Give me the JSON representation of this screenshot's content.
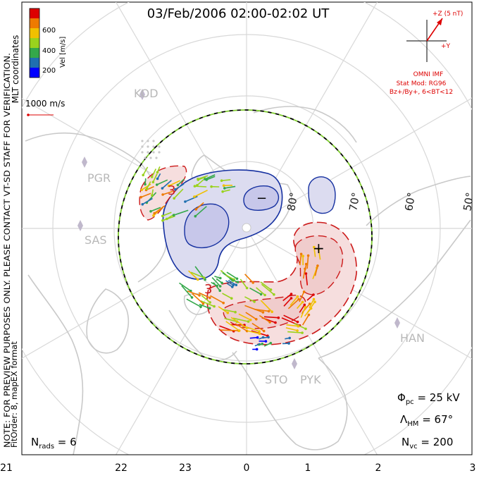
{
  "title": "03/Feb/2006 02:00-02:02 UT",
  "colorbar": {
    "label": "Vel [m/s]",
    "ticks": [
      "600",
      "400",
      "200"
    ]
  },
  "coordinates_label": "MLT coordinates",
  "scale_label": "1000 m/s",
  "imf": {
    "bz_label": "+Z (5 nT)",
    "by_label": "+Y",
    "source_label": "OMNI IMF",
    "stat_mod_label": "Stat Mod: RG96",
    "condition_label": "Bz+/By+, 6<BT<12"
  },
  "side_note": {
    "line1": "NOTE: FOR PREVIEW PURPOSES ONLY. PLEASE CONTACT VT-SD STAFF FOR VERIFICATION.",
    "line2": "FitOrder: 8, mapEX format"
  },
  "latitude_labels": [
    "80°",
    "70°",
    "60°",
    "50°"
  ],
  "radars": [
    "KOD",
    "PGR",
    "SAS",
    "HAN",
    "STO",
    "PYK"
  ],
  "extrema": {
    "min_symbol": "−",
    "max_symbol": "+"
  },
  "contour_labels": [
    "3",
    "3"
  ],
  "stats": {
    "phi_pc_label": "Φ",
    "phi_pc_sub": "pc",
    "phi_pc_value": " = 25 kV",
    "lambda_hm_label": "Λ",
    "lambda_hm_sub": "HM",
    "lambda_hm_value": " = 67°",
    "n_vc_label": "N",
    "n_vc_sub": "vc",
    "n_vc_value": " = 200",
    "n_rads_label": "N",
    "n_rads_sub": "rads",
    "n_rads_value": " = 6"
  },
  "mlt_axis": [
    "21",
    "22",
    "23",
    "0",
    "1",
    "2",
    "3"
  ],
  "colors": {
    "negative_fill": "#dcdcf0",
    "negative_contour": "#1530a0",
    "positive_fill": "#f6dede",
    "positive_contour": "#cc1a1a",
    "land": "#c9c9c9",
    "grid": "#d8d8d8",
    "imf": "#dd0000",
    "hmb_dash_a": "#000000",
    "hmb_dash_b": "#7fcc30",
    "colorbar": [
      "#0000ff",
      "#1f6fb0",
      "#34a84a",
      "#9ad21d",
      "#f0c000",
      "#ee7a00",
      "#dd0000"
    ]
  }
}
